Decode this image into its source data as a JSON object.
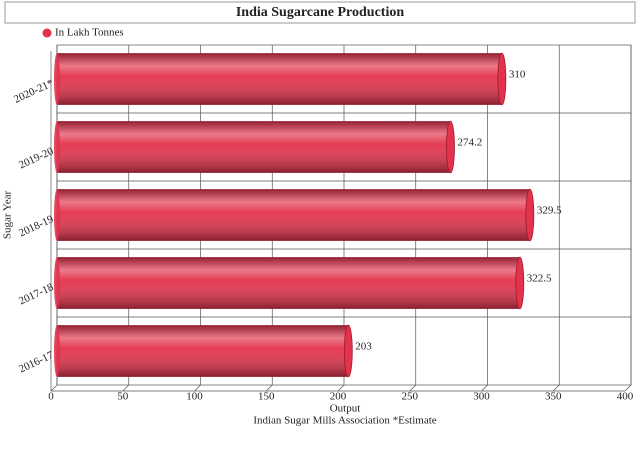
{
  "chart_data": {
    "type": "horizontal_bar",
    "title": "India Sugarcane Production",
    "legend_label": "In Lakh Tonnes",
    "color": "#e3324c",
    "categories": [
      "2020-21*",
      "2019-20",
      "2018-19",
      "2017-18",
      "2016-17"
    ],
    "values": [
      310,
      274.2,
      329.5,
      322.5,
      203
    ],
    "xlim": [
      0,
      400
    ],
    "xticks": [
      0,
      50,
      100,
      150,
      200,
      250,
      300,
      350,
      400
    ],
    "x_axis_label": "Output",
    "y_axis_label": "Sugar Year",
    "caption": "Indian Sugar Mills Association *Estimate",
    "grid": true
  }
}
